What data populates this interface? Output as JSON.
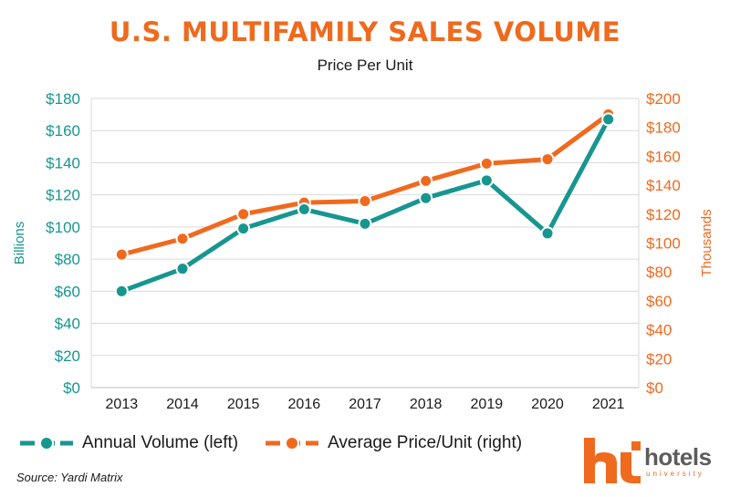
{
  "header": {
    "title": "U.S. MULTIFAMILY SALES VOLUME",
    "subtitle": "Price Per Unit"
  },
  "legend": {
    "left_label": "Annual Volume (left)",
    "right_label": "Average Price/Unit (right)"
  },
  "source": "Source: Yardi Matrix",
  "logo": {
    "text": "hotels",
    "subtext": "university"
  },
  "colors": {
    "title": "#ee6a1e",
    "volume": "#179690",
    "price": "#ef6a1f",
    "grid": "#d9d9d9",
    "axis": "#444444"
  },
  "chart_data": {
    "type": "line",
    "categories": [
      "2013",
      "2014",
      "2015",
      "2016",
      "2017",
      "2018",
      "2019",
      "2020",
      "2021"
    ],
    "ylabel_left": "Billions",
    "ylabel_right": "Thousands",
    "ylim_left": [
      0,
      180
    ],
    "ylim_right": [
      0,
      200
    ],
    "yticks_left": [
      "$0",
      "$20",
      "$40",
      "$60",
      "$80",
      "$100",
      "$120",
      "$140",
      "$160",
      "$180"
    ],
    "yticks_right": [
      "$0",
      "$20",
      "$40",
      "$60",
      "$80",
      "$100",
      "$120",
      "$140",
      "$160",
      "$180",
      "$200"
    ],
    "grid": true,
    "legend_position": "bottom-left",
    "series": [
      {
        "name": "Annual Volume (left)",
        "axis": "left",
        "values": [
          60,
          74,
          99,
          111,
          102,
          118,
          129,
          96,
          167
        ]
      },
      {
        "name": "Average Price/Unit (right)",
        "axis": "right",
        "values": [
          92,
          103,
          120,
          128,
          129,
          143,
          155,
          158,
          189
        ]
      }
    ]
  }
}
